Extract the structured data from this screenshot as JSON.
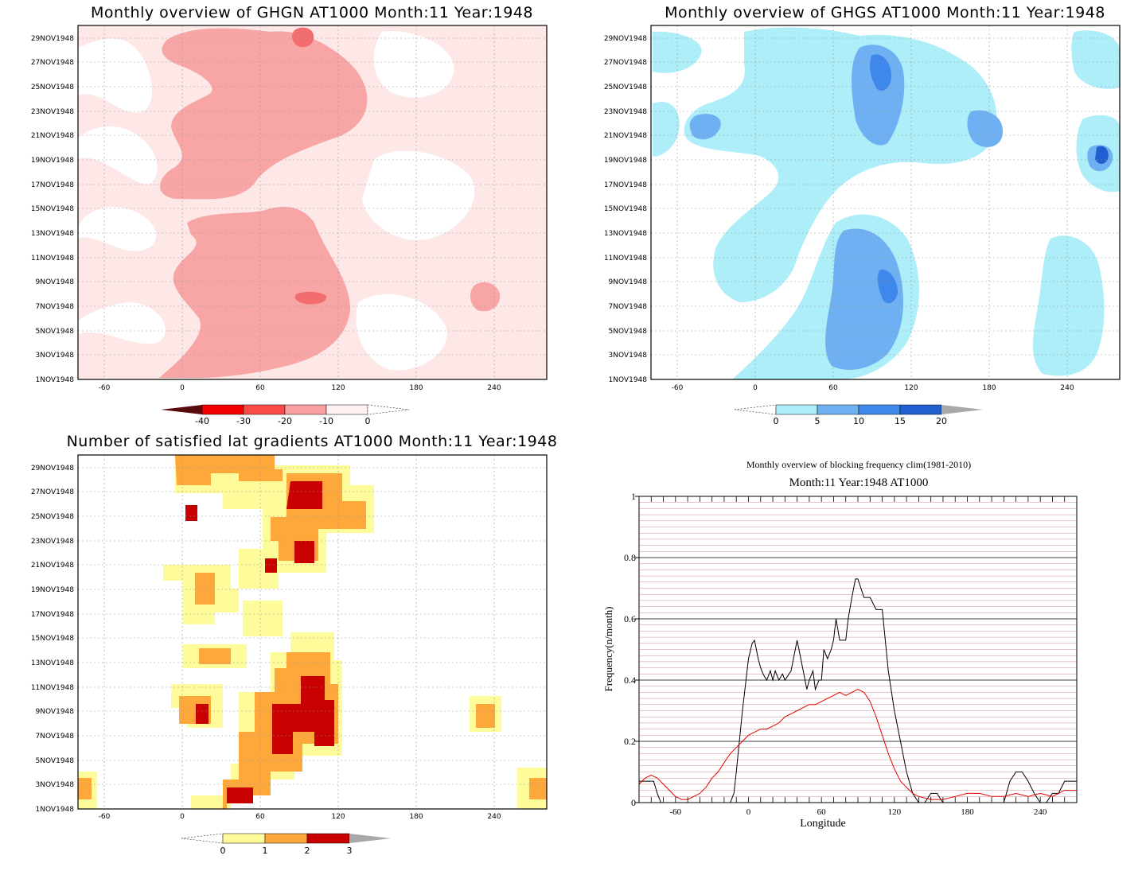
{
  "panels": [
    {
      "id": "ghgn",
      "title": "Monthly overview of GHGN AT1000 Month:11 Year:1948",
      "legend_ticks": [
        "-40",
        "-30",
        "-20",
        "-10",
        "0"
      ],
      "legend_colors": [
        "#5a0a0a",
        "#f20000",
        "#fa4b4b",
        "#fba0a0",
        "#fff0f0"
      ],
      "colors": {
        "light": "#fde7e7",
        "mid": "#f8a5a5",
        "dark": "#f26e6e",
        "darkest": "#ee2020"
      }
    },
    {
      "id": "ghgs",
      "title": "Monthly overview of GHGS AT1000 Month:11 Year:1948",
      "legend_ticks": [
        "0",
        "5",
        "10",
        "15",
        "20"
      ],
      "legend_colors": [
        "#aeeef8",
        "#6fb0f2",
        "#3d88ea",
        "#1f5fd0",
        "#a8a8a8"
      ],
      "colors": {
        "light": "#aeeef8",
        "mid": "#6fb0f2",
        "dark": "#3d88ea",
        "darkest": "#1f5fd0"
      }
    },
    {
      "id": "sat",
      "title": "Number of satisfied lat gradients AT1000 Month:11 Year:1948",
      "legend_ticks": [
        "0",
        "1",
        "2",
        "3"
      ],
      "legend_colors": [
        "#fdfb9a",
        "#fea83c",
        "#c80000",
        "#a8a8a8"
      ],
      "colors": {
        "light": "#fdfb9a",
        "mid": "#fea83c",
        "dark": "#f58a2a",
        "darkest": "#c80000"
      }
    }
  ],
  "y_ticks": [
    "1NOV1948",
    "3NOV1948",
    "5NOV1948",
    "7NOV1948",
    "9NOV1948",
    "11NOV1948",
    "13NOV1948",
    "15NOV1948",
    "17NOV1948",
    "19NOV1948",
    "21NOV1948",
    "23NOV1948",
    "25NOV1948",
    "27NOV1948",
    "29NOV1948"
  ],
  "x_ticks": [
    "-60",
    "0",
    "60",
    "120",
    "180",
    "240"
  ],
  "chart_data": {
    "type": "line",
    "title": "Monthly overview of blocking frequency clim(1981-2010)",
    "subtitle": "Month:11 Year:1948  AT1000",
    "xlabel": "Longitude",
    "ylabel": "Frequency(n/month)",
    "xlim": [
      -90,
      270
    ],
    "ylim": [
      0,
      1
    ],
    "x_ticks": [
      "-60",
      "0",
      "60",
      "120",
      "180",
      "240"
    ],
    "y_ticks": [
      "0",
      "0.2",
      "0.4",
      "0.6",
      "0.8",
      "1"
    ],
    "grid": true,
    "series": [
      {
        "color": "#000000",
        "x": [
          -90,
          -78,
          -75,
          -72,
          -60,
          -45,
          -30,
          -15,
          -12,
          -10,
          -5,
          0,
          3,
          5,
          8,
          10,
          12,
          15,
          18,
          20,
          22,
          25,
          28,
          30,
          35,
          40,
          45,
          48,
          50,
          53,
          55,
          58,
          60,
          62,
          65,
          68,
          70,
          72,
          75,
          80,
          82,
          85,
          88,
          90,
          95,
          100,
          105,
          110,
          115,
          120,
          125,
          130,
          135,
          140,
          145,
          150,
          155,
          160,
          165,
          170,
          180,
          190,
          200,
          210,
          215,
          220,
          225,
          230,
          235,
          240,
          245,
          250,
          255,
          260,
          265,
          270
        ],
        "y": [
          0.07,
          0.07,
          0.03,
          0.0,
          0.0,
          0.0,
          0.0,
          0.0,
          0.03,
          0.1,
          0.3,
          0.47,
          0.52,
          0.53,
          0.47,
          0.44,
          0.42,
          0.4,
          0.43,
          0.4,
          0.43,
          0.4,
          0.42,
          0.4,
          0.43,
          0.53,
          0.43,
          0.37,
          0.4,
          0.43,
          0.37,
          0.4,
          0.4,
          0.5,
          0.47,
          0.5,
          0.53,
          0.6,
          0.53,
          0.53,
          0.6,
          0.67,
          0.73,
          0.73,
          0.67,
          0.67,
          0.63,
          0.63,
          0.43,
          0.3,
          0.2,
          0.1,
          0.03,
          0.0,
          0.0,
          0.03,
          0.03,
          0.0,
          0.0,
          0.0,
          0.0,
          0.0,
          0.0,
          0.0,
          0.07,
          0.1,
          0.1,
          0.07,
          0.03,
          0.0,
          0.0,
          0.03,
          0.03,
          0.07,
          0.07,
          0.07
        ]
      },
      {
        "color": "#e00000",
        "x": [
          -90,
          -85,
          -80,
          -75,
          -70,
          -65,
          -60,
          -55,
          -50,
          -45,
          -40,
          -35,
          -30,
          -25,
          -20,
          -15,
          -10,
          -5,
          0,
          5,
          10,
          15,
          20,
          25,
          30,
          35,
          40,
          45,
          50,
          55,
          60,
          65,
          70,
          75,
          80,
          85,
          90,
          95,
          100,
          105,
          110,
          115,
          120,
          125,
          130,
          135,
          140,
          150,
          160,
          170,
          180,
          190,
          200,
          210,
          220,
          230,
          240,
          250,
          260,
          270
        ],
        "y": [
          0.06,
          0.08,
          0.09,
          0.08,
          0.06,
          0.04,
          0.02,
          0.01,
          0.01,
          0.02,
          0.03,
          0.05,
          0.08,
          0.1,
          0.13,
          0.16,
          0.18,
          0.2,
          0.22,
          0.23,
          0.24,
          0.24,
          0.25,
          0.26,
          0.28,
          0.29,
          0.3,
          0.31,
          0.32,
          0.32,
          0.33,
          0.34,
          0.35,
          0.36,
          0.35,
          0.36,
          0.37,
          0.36,
          0.33,
          0.28,
          0.22,
          0.16,
          0.11,
          0.07,
          0.05,
          0.03,
          0.02,
          0.01,
          0.01,
          0.02,
          0.03,
          0.03,
          0.02,
          0.02,
          0.03,
          0.02,
          0.03,
          0.02,
          0.04,
          0.04
        ]
      }
    ]
  }
}
